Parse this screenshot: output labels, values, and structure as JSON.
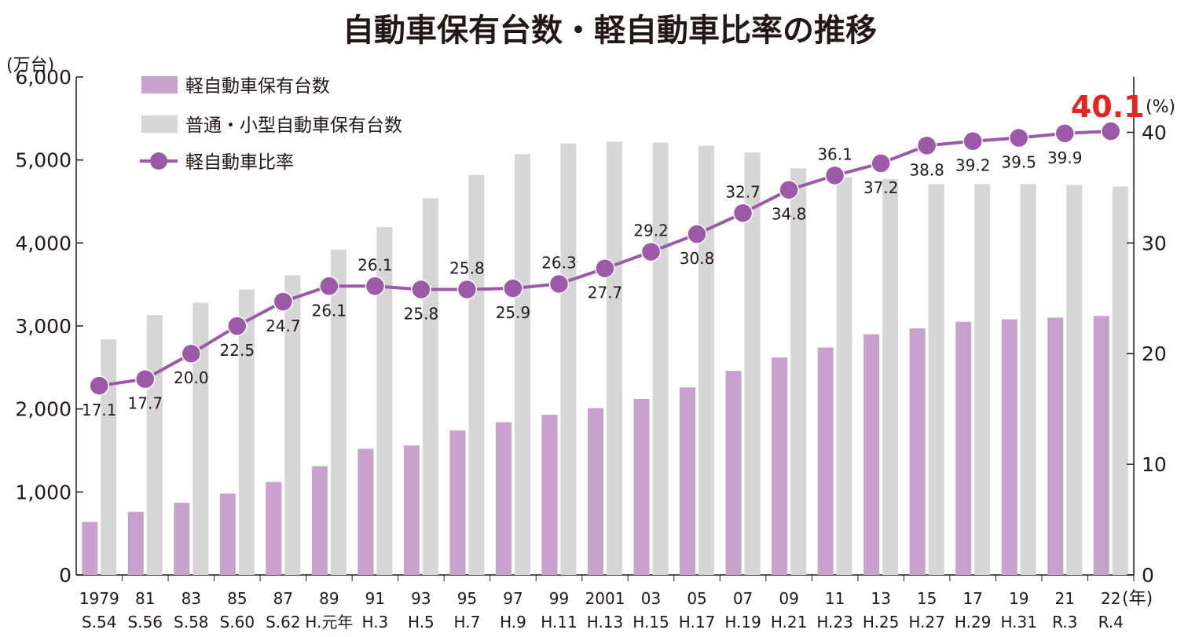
{
  "chart_data": {
    "type": "bar",
    "title": "自動車保有台数・軽自動車比率の推移",
    "categories": [
      "1979",
      "81",
      "83",
      "85",
      "87",
      "89",
      "91",
      "93",
      "95",
      "97",
      "99",
      "2001",
      "03",
      "05",
      "07",
      "09",
      "11",
      "13",
      "15",
      "17",
      "19",
      "21",
      "22"
    ],
    "subcategories": [
      "S.54",
      "S.56",
      "S.58",
      "S.60",
      "S.62",
      "H.元年",
      "H.3",
      "H.5",
      "H.7",
      "H.9",
      "H.11",
      "H.13",
      "H.15",
      "H.17",
      "H.19",
      "H.21",
      "H.23",
      "H.25",
      "H.27",
      "H.29",
      "H.31",
      "R.3",
      "R.4"
    ],
    "xunit": "(年)",
    "ylabel_left": "(万台)",
    "ylabel_right": "(%)",
    "ylim_left": [
      0,
      6000
    ],
    "yticks_left": [
      0,
      1000,
      2000,
      3000,
      4000,
      5000,
      6000
    ],
    "ytick_labels_left": [
      "0",
      "1,000",
      "2,000",
      "3,000",
      "4,000",
      "5,000",
      "6,000"
    ],
    "ylim_right": [
      0,
      45
    ],
    "yticks_right": [
      0,
      10,
      20,
      30,
      40
    ],
    "ytick_labels_right": [
      "0",
      "10",
      "20",
      "30",
      "40"
    ],
    "legend_position": "top-left",
    "series": [
      {
        "name": "軽自動車保有台数",
        "kind": "bar",
        "axis": "left",
        "color": "#c9a1cd",
        "values": [
          640,
          760,
          870,
          980,
          1120,
          1310,
          1520,
          1560,
          1740,
          1840,
          1930,
          2010,
          2120,
          2260,
          2460,
          2620,
          2740,
          2900,
          2970,
          3050,
          3080,
          3100,
          3120
        ]
      },
      {
        "name": "普通・小型自動車保有台数",
        "kind": "bar",
        "axis": "left",
        "color": "#d6d6d6",
        "values": [
          2840,
          3130,
          3280,
          3440,
          3610,
          3920,
          4190,
          4540,
          4820,
          5070,
          5200,
          5220,
          5210,
          5170,
          5090,
          4900,
          4790,
          4770,
          4710,
          4710,
          4710,
          4700,
          4680
        ]
      },
      {
        "name": "軽自動車比率",
        "kind": "line",
        "axis": "right",
        "color": "#9b59a7",
        "values": [
          17.1,
          17.7,
          20.0,
          22.5,
          24.7,
          26.1,
          26.1,
          25.8,
          25.8,
          25.9,
          26.3,
          27.7,
          29.2,
          30.8,
          32.7,
          34.8,
          36.1,
          37.2,
          38.8,
          39.2,
          39.5,
          39.9,
          40.1
        ],
        "labels": [
          "17.1",
          "17.7",
          "20.0",
          "22.5",
          "24.7",
          "26.1",
          "26.1",
          "25.8",
          "25.8",
          "25.9",
          "26.3",
          "27.7",
          "29.2",
          "30.8",
          "32.7",
          "34.8",
          "36.1",
          "37.2",
          "38.8",
          "39.2",
          "39.5",
          "39.9",
          "40.1"
        ],
        "label_side": [
          "below",
          "below",
          "below",
          "below",
          "below",
          "below",
          "above",
          "below",
          "above",
          "below",
          "above",
          "below",
          "above",
          "below",
          "above",
          "below",
          "above",
          "below",
          "below",
          "below",
          "below",
          "below",
          "above"
        ]
      }
    ],
    "highlight_color": "#e8231d"
  }
}
